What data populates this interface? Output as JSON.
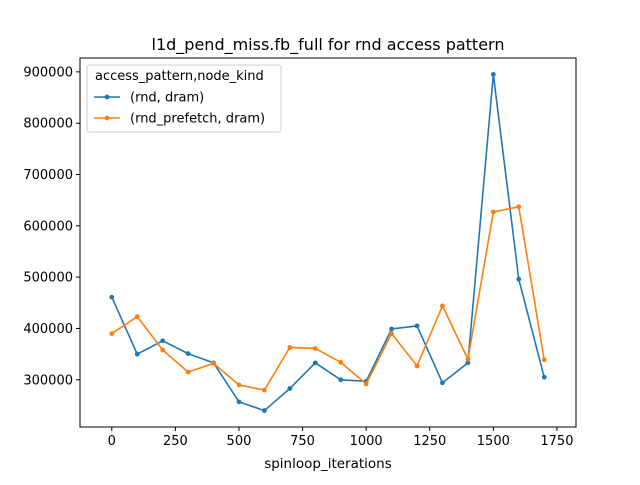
{
  "chart_data": {
    "type": "line",
    "title": "l1d_pend_miss.fb_full for rnd access pattern",
    "xlabel": "spinloop_iterations",
    "ylabel": "",
    "xlim": [
      -125,
      1825
    ],
    "ylim": [
      208000,
      927000
    ],
    "xticks": [
      0,
      250,
      500,
      750,
      1000,
      1250,
      1500,
      1750
    ],
    "yticks": [
      300000,
      400000,
      500000,
      600000,
      700000,
      800000,
      900000
    ],
    "x": [
      0,
      100,
      200,
      300,
      400,
      500,
      600,
      700,
      800,
      900,
      1000,
      1100,
      1200,
      1300,
      1400,
      1500,
      1600,
      1700
    ],
    "legend": {
      "title": "access_pattern,node_kind",
      "placement": "upper left"
    },
    "grid": false,
    "series": [
      {
        "name": "(rnd, dram)",
        "color": "#1f77b4",
        "values": [
          461000,
          350000,
          376000,
          351000,
          333000,
          257000,
          240000,
          283000,
          333000,
          300000,
          297000,
          399000,
          405000,
          294000,
          333000,
          895000,
          496000,
          305000
        ]
      },
      {
        "name": "(rnd_prefetch, dram)",
        "color": "#ff7f0e",
        "values": [
          390000,
          423000,
          358000,
          315000,
          332000,
          290000,
          280000,
          363000,
          361000,
          334000,
          292000,
          390000,
          327000,
          444000,
          340000,
          627000,
          637000,
          339000
        ]
      }
    ]
  }
}
